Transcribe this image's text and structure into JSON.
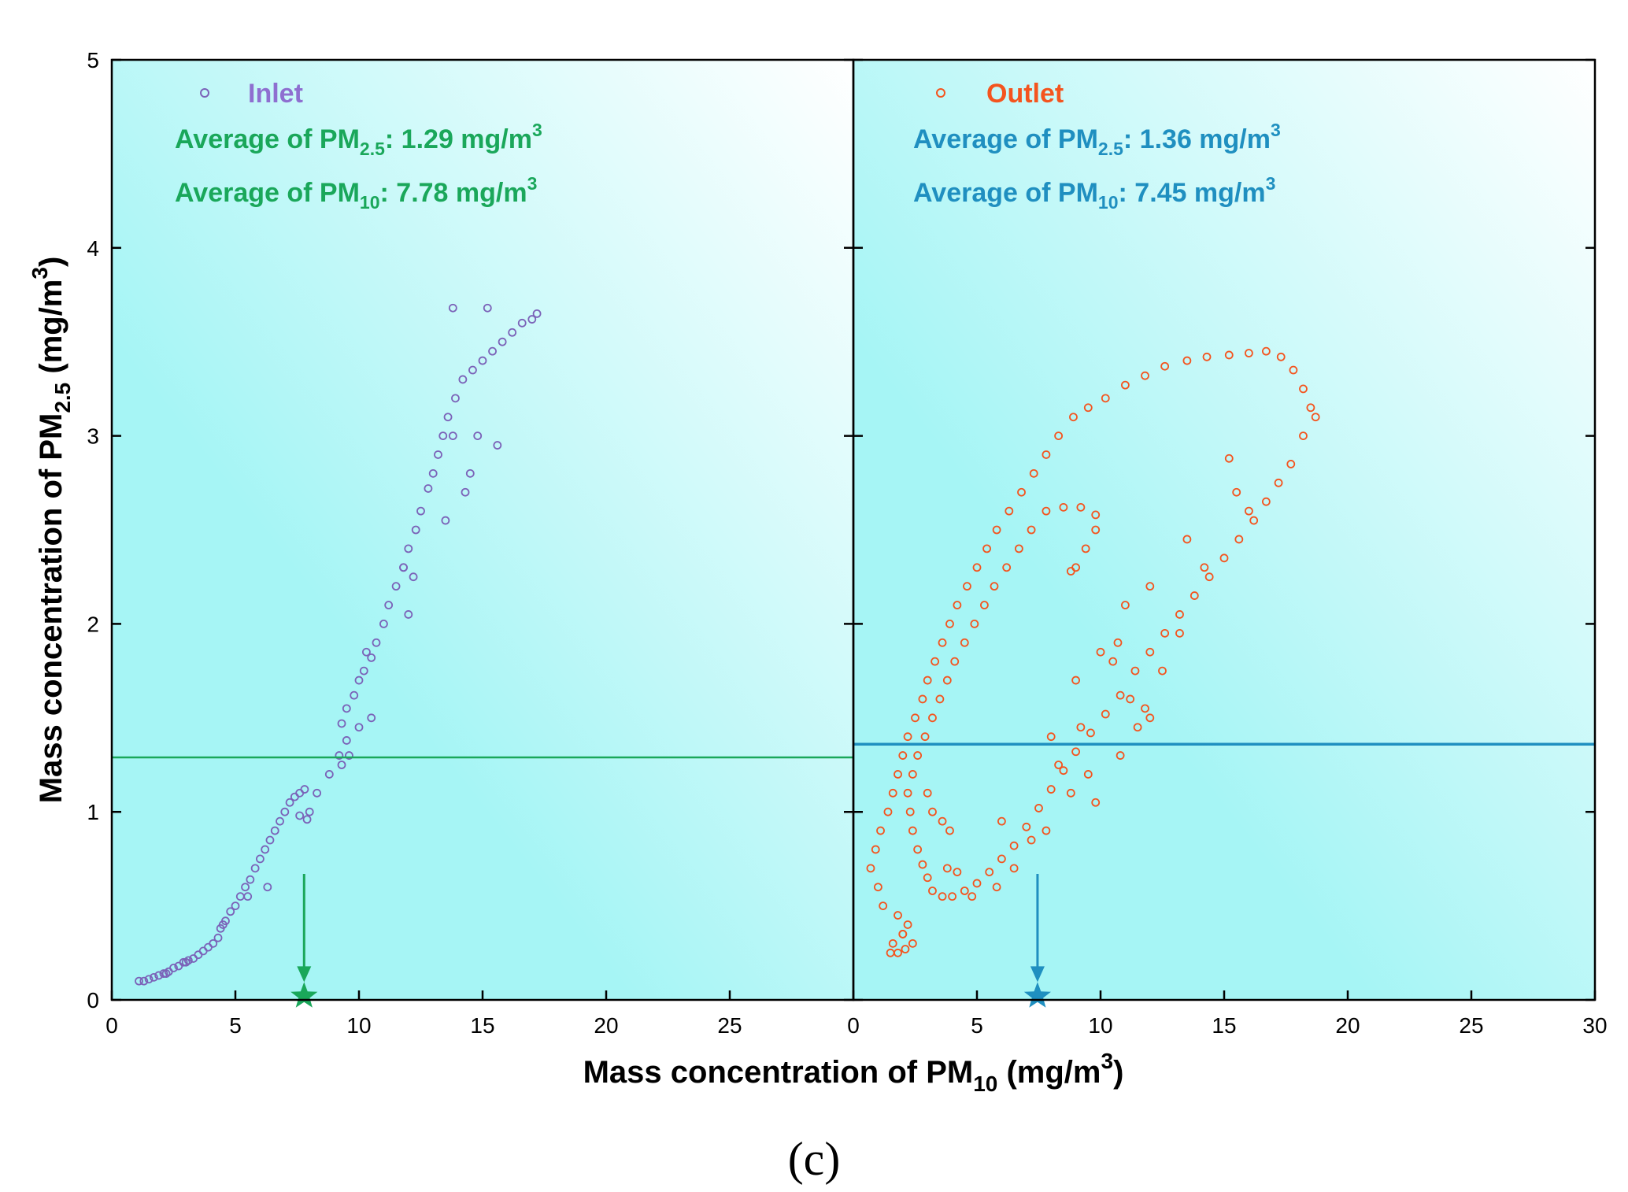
{
  "chart_data": [
    {
      "type": "scatter",
      "panel": "left",
      "xlim": [
        0,
        30
      ],
      "ylim": [
        0,
        5
      ],
      "x_ticks": [
        "0",
        "5",
        "10",
        "15",
        "20",
        "25"
      ],
      "y_ticks": [
        "0",
        "1",
        "2",
        "3",
        "4",
        "5"
      ],
      "legend": {
        "label": "Inlet",
        "position": "top-left"
      },
      "avg_pm25": {
        "prefix": "Average of PM",
        "sub": "2.5",
        "value": ": 1.29 mg/m",
        "sup": "3"
      },
      "avg_pm10": {
        "prefix": "Average of PM",
        "sub": "10",
        "value": ": 7.78 mg/m",
        "sup": "3"
      },
      "hline_y": 1.29,
      "star_x": 7.78,
      "series": [
        {
          "name": "Inlet",
          "points": [
            [
              1.1,
              0.1
            ],
            [
              1.3,
              0.1
            ],
            [
              1.5,
              0.11
            ],
            [
              1.7,
              0.12
            ],
            [
              1.9,
              0.13
            ],
            [
              2.1,
              0.14
            ],
            [
              2.3,
              0.15
            ],
            [
              2.5,
              0.17
            ],
            [
              2.7,
              0.18
            ],
            [
              2.9,
              0.2
            ],
            [
              3.1,
              0.21
            ],
            [
              3.3,
              0.22
            ],
            [
              3.5,
              0.24
            ],
            [
              3.7,
              0.26
            ],
            [
              3.9,
              0.28
            ],
            [
              4.1,
              0.3
            ],
            [
              4.3,
              0.33
            ],
            [
              4.4,
              0.38
            ],
            [
              4.6,
              0.42
            ],
            [
              4.8,
              0.47
            ],
            [
              5.0,
              0.5
            ],
            [
              5.2,
              0.55
            ],
            [
              5.4,
              0.6
            ],
            [
              5.6,
              0.64
            ],
            [
              5.8,
              0.7
            ],
            [
              6.0,
              0.75
            ],
            [
              6.2,
              0.8
            ],
            [
              6.4,
              0.85
            ],
            [
              6.6,
              0.9
            ],
            [
              6.8,
              0.95
            ],
            [
              7.0,
              1.0
            ],
            [
              7.2,
              1.05
            ],
            [
              7.4,
              1.08
            ],
            [
              7.6,
              1.1
            ],
            [
              7.8,
              1.12
            ],
            [
              7.6,
              0.98
            ],
            [
              7.9,
              0.96
            ],
            [
              8.3,
              1.1
            ],
            [
              8.8,
              1.2
            ],
            [
              9.3,
              1.25
            ],
            [
              9.6,
              1.3
            ],
            [
              9.5,
              1.38
            ],
            [
              9.3,
              1.47
            ],
            [
              9.5,
              1.55
            ],
            [
              9.8,
              1.62
            ],
            [
              10.0,
              1.7
            ],
            [
              10.2,
              1.75
            ],
            [
              10.5,
              1.82
            ],
            [
              10.7,
              1.9
            ],
            [
              11.0,
              2.0
            ],
            [
              11.2,
              2.1
            ],
            [
              11.5,
              2.2
            ],
            [
              11.8,
              2.3
            ],
            [
              12.0,
              2.4
            ],
            [
              12.3,
              2.5
            ],
            [
              12.5,
              2.6
            ],
            [
              12.8,
              2.72
            ],
            [
              13.0,
              2.8
            ],
            [
              13.2,
              2.9
            ],
            [
              13.4,
              3.0
            ],
            [
              13.6,
              3.1
            ],
            [
              13.9,
              3.2
            ],
            [
              14.2,
              3.3
            ],
            [
              14.6,
              3.35
            ],
            [
              15.0,
              3.4
            ],
            [
              15.4,
              3.45
            ],
            [
              15.8,
              3.5
            ],
            [
              16.2,
              3.55
            ],
            [
              16.6,
              3.6
            ],
            [
              17.0,
              3.62
            ],
            [
              17.2,
              3.65
            ],
            [
              15.2,
              3.68
            ],
            [
              13.8,
              3.68
            ],
            [
              10.5,
              1.5
            ],
            [
              10.0,
              1.45
            ],
            [
              12.2,
              2.25
            ],
            [
              11.8,
              2.3
            ],
            [
              14.5,
              2.8
            ],
            [
              15.6,
              2.95
            ],
            [
              13.5,
              2.55
            ],
            [
              9.2,
              1.3
            ],
            [
              6.3,
              0.6
            ],
            [
              5.5,
              0.55
            ],
            [
              4.5,
              0.4
            ],
            [
              3.0,
              0.2
            ],
            [
              2.2,
              0.14
            ],
            [
              8.0,
              1.0
            ],
            [
              12.0,
              2.05
            ],
            [
              10.3,
              1.85
            ],
            [
              14.3,
              2.7
            ],
            [
              13.8,
              3.0
            ],
            [
              14.8,
              3.0
            ]
          ]
        }
      ]
    },
    {
      "type": "scatter",
      "panel": "right",
      "xlim": [
        0,
        30
      ],
      "ylim": [
        0,
        5
      ],
      "x_ticks": [
        "0",
        "5",
        "10",
        "15",
        "20",
        "25",
        "30"
      ],
      "legend": {
        "label": "Outlet",
        "position": "top-left"
      },
      "avg_pm25": {
        "prefix": "Average of PM",
        "sub": "2.5",
        "value": ": 1.36 mg/m",
        "sup": "3"
      },
      "avg_pm10": {
        "prefix": "Average of PM",
        "sub": "10",
        "value": ": 7.45 mg/m",
        "sup": "3"
      },
      "hline_y": 1.36,
      "star_x": 7.45,
      "series": [
        {
          "name": "Outlet",
          "points": [
            [
              1.5,
              0.25
            ],
            [
              1.8,
              0.25
            ],
            [
              2.1,
              0.27
            ],
            [
              2.4,
              0.3
            ],
            [
              1.6,
              0.3
            ],
            [
              2.0,
              0.35
            ],
            [
              2.2,
              0.4
            ],
            [
              1.8,
              0.45
            ],
            [
              1.2,
              0.5
            ],
            [
              1.0,
              0.6
            ],
            [
              0.7,
              0.7
            ],
            [
              0.9,
              0.8
            ],
            [
              1.1,
              0.9
            ],
            [
              1.4,
              1.0
            ],
            [
              1.6,
              1.1
            ],
            [
              1.8,
              1.2
            ],
            [
              2.0,
              1.3
            ],
            [
              2.2,
              1.4
            ],
            [
              2.5,
              1.5
            ],
            [
              2.8,
              1.6
            ],
            [
              3.0,
              1.7
            ],
            [
              3.3,
              1.8
            ],
            [
              3.6,
              1.9
            ],
            [
              3.9,
              2.0
            ],
            [
              4.2,
              2.1
            ],
            [
              4.6,
              2.2
            ],
            [
              5.0,
              2.3
            ],
            [
              5.4,
              2.4
            ],
            [
              5.8,
              2.5
            ],
            [
              6.3,
              2.6
            ],
            [
              6.8,
              2.7
            ],
            [
              7.3,
              2.8
            ],
            [
              7.8,
              2.9
            ],
            [
              8.3,
              3.0
            ],
            [
              8.9,
              3.1
            ],
            [
              9.5,
              3.15
            ],
            [
              10.2,
              3.2
            ],
            [
              11.0,
              3.27
            ],
            [
              11.8,
              3.32
            ],
            [
              12.6,
              3.37
            ],
            [
              13.5,
              3.4
            ],
            [
              14.3,
              3.42
            ],
            [
              15.2,
              3.43
            ],
            [
              16.0,
              3.44
            ],
            [
              16.7,
              3.45
            ],
            [
              17.3,
              3.42
            ],
            [
              17.8,
              3.35
            ],
            [
              18.2,
              3.25
            ],
            [
              18.5,
              3.15
            ],
            [
              18.7,
              3.1
            ],
            [
              18.2,
              3.0
            ],
            [
              17.7,
              2.85
            ],
            [
              17.2,
              2.75
            ],
            [
              16.7,
              2.65
            ],
            [
              16.2,
              2.55
            ],
            [
              15.6,
              2.45
            ],
            [
              15.0,
              2.35
            ],
            [
              14.4,
              2.25
            ],
            [
              13.8,
              2.15
            ],
            [
              13.2,
              2.05
            ],
            [
              12.6,
              1.95
            ],
            [
              12.0,
              1.85
            ],
            [
              11.4,
              1.75
            ],
            [
              10.8,
              1.62
            ],
            [
              10.2,
              1.52
            ],
            [
              9.6,
              1.42
            ],
            [
              9.0,
              1.32
            ],
            [
              8.5,
              1.22
            ],
            [
              8.0,
              1.12
            ],
            [
              7.5,
              1.02
            ],
            [
              7.0,
              0.92
            ],
            [
              6.5,
              0.82
            ],
            [
              6.0,
              0.75
            ],
            [
              5.5,
              0.68
            ],
            [
              5.0,
              0.62
            ],
            [
              4.5,
              0.58
            ],
            [
              4.0,
              0.55
            ],
            [
              3.6,
              0.55
            ],
            [
              3.2,
              0.58
            ],
            [
              3.0,
              0.65
            ],
            [
              2.8,
              0.72
            ],
            [
              2.6,
              0.8
            ],
            [
              2.4,
              0.9
            ],
            [
              2.3,
              1.0
            ],
            [
              2.2,
              1.1
            ],
            [
              2.4,
              1.2
            ],
            [
              2.6,
              1.3
            ],
            [
              2.9,
              1.4
            ],
            [
              3.2,
              1.5
            ],
            [
              3.5,
              1.6
            ],
            [
              3.8,
              1.7
            ],
            [
              4.1,
              1.8
            ],
            [
              4.5,
              1.9
            ],
            [
              4.9,
              2.0
            ],
            [
              5.3,
              2.1
            ],
            [
              5.7,
              2.2
            ],
            [
              6.2,
              2.3
            ],
            [
              6.7,
              2.4
            ],
            [
              7.2,
              2.5
            ],
            [
              7.8,
              2.6
            ],
            [
              8.5,
              2.62
            ],
            [
              9.2,
              2.62
            ],
            [
              9.8,
              2.58
            ],
            [
              9.8,
              2.5
            ],
            [
              9.4,
              2.4
            ],
            [
              9.0,
              2.3
            ],
            [
              8.8,
              2.28
            ],
            [
              3.9,
              0.9
            ],
            [
              3.6,
              0.95
            ],
            [
              3.2,
              1.0
            ],
            [
              3.0,
              1.1
            ],
            [
              10.5,
              1.8
            ],
            [
              11.2,
              1.6
            ],
            [
              12.0,
              1.5
            ],
            [
              10.7,
              1.9
            ],
            [
              11.5,
              1.45
            ],
            [
              9.5,
              1.2
            ],
            [
              8.8,
              1.1
            ],
            [
              7.8,
              0.9
            ],
            [
              6.5,
              0.7
            ],
            [
              5.8,
              0.6
            ],
            [
              4.8,
              0.55
            ],
            [
              8.0,
              1.4
            ],
            [
              9.0,
              1.7
            ],
            [
              10.0,
              1.85
            ],
            [
              13.5,
              2.45
            ],
            [
              14.2,
              2.3
            ],
            [
              15.5,
              2.7
            ],
            [
              15.2,
              2.88
            ],
            [
              16.0,
              2.6
            ],
            [
              9.8,
              1.05
            ],
            [
              10.8,
              1.3
            ],
            [
              11.8,
              1.55
            ],
            [
              12.5,
              1.75
            ],
            [
              13.2,
              1.95
            ],
            [
              7.2,
              0.85
            ],
            [
              6.0,
              0.95
            ],
            [
              8.3,
              1.25
            ],
            [
              9.2,
              1.45
            ],
            [
              11.0,
              2.1
            ],
            [
              12.0,
              2.2
            ],
            [
              3.8,
              0.7
            ],
            [
              4.2,
              0.68
            ],
            [
              2.0,
              0.35
            ]
          ]
        }
      ]
    }
  ],
  "axis_titles": {
    "x": {
      "prefix": "Mass concentration of PM",
      "sub": "10",
      "mid": " (mg/m",
      "sup": "3",
      "suffix": ")"
    },
    "y": {
      "prefix": "Mass concentration of PM",
      "sub": "2.5",
      "mid": " (mg/m",
      "sup": "3",
      "suffix": ")"
    }
  },
  "panel_label": "(c)",
  "colors": {
    "inlet": "#7b62b8",
    "inlet_text": "#8e6fd0",
    "outlet": "#f4541e",
    "green": "#1aa75a",
    "blue": "#1f8fc0",
    "bg_dark": "#a4f4f4",
    "bg_light": "#ffffff"
  }
}
